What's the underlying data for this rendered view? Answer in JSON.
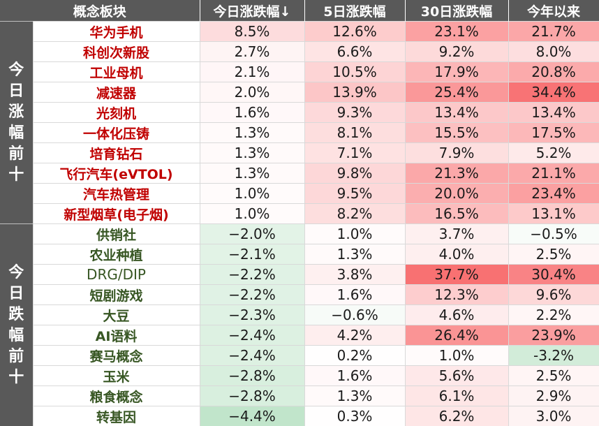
{
  "columns": [
    "概念板块",
    "今日涨跌幅↓",
    "5日涨跌幅",
    "30日涨跌幅",
    "今年以来"
  ],
  "groups": [
    {
      "label": "今日涨幅前十",
      "rows": [
        {
          "name": "华为手机",
          "today": "8.5%",
          "d5": "12.6%",
          "d30": "23.1%",
          "ytd": "21.7%"
        },
        {
          "name": "科创次新股",
          "today": "2.7%",
          "d5": "6.6%",
          "d30": "9.2%",
          "ytd": "8.0%"
        },
        {
          "name": "工业母机",
          "today": "2.1%",
          "d5": "10.5%",
          "d30": "17.9%",
          "ytd": "20.8%"
        },
        {
          "name": "减速器",
          "today": "2.0%",
          "d5": "13.9%",
          "d30": "25.4%",
          "ytd": "34.4%"
        },
        {
          "name": "光刻机",
          "today": "1.6%",
          "d5": "9.3%",
          "d30": "13.4%",
          "ytd": "13.4%"
        },
        {
          "name": "一体化压铸",
          "today": "1.3%",
          "d5": "8.1%",
          "d30": "15.5%",
          "ytd": "17.5%"
        },
        {
          "name": "培育钻石",
          "today": "1.3%",
          "d5": "7.1%",
          "d30": "7.9%",
          "ytd": "5.2%"
        },
        {
          "name": "飞行汽车(eVTOL)",
          "today": "1.3%",
          "d5": "9.8%",
          "d30": "21.3%",
          "ytd": "21.1%"
        },
        {
          "name": "汽车热管理",
          "today": "1.0%",
          "d5": "9.5%",
          "d30": "20.0%",
          "ytd": "23.4%"
        },
        {
          "name": "新型烟草(电子烟)",
          "today": "1.0%",
          "d5": "8.2%",
          "d30": "16.5%",
          "ytd": "13.1%"
        }
      ]
    },
    {
      "label": "今日跌幅前十",
      "rows": [
        {
          "name": "供销社",
          "today": "−2.0%",
          "d5": "1.0%",
          "d30": "3.7%",
          "ytd": "−0.5%"
        },
        {
          "name": "农业种植",
          "today": "−2.1%",
          "d5": "1.3%",
          "d30": "4.0%",
          "ytd": "2.5%"
        },
        {
          "name": "DRG/DIP",
          "today": "−2.2%",
          "d5": "3.8%",
          "d30": "37.7%",
          "ytd": "30.4%"
        },
        {
          "name": "短剧游戏",
          "today": "−2.2%",
          "d5": "1.6%",
          "d30": "12.3%",
          "ytd": "9.6%"
        },
        {
          "name": "大豆",
          "today": "−2.3%",
          "d5": "−0.6%",
          "d30": "4.6%",
          "ytd": "2.2%"
        },
        {
          "name": "AI语料",
          "today": "−2.4%",
          "d5": "4.2%",
          "d30": "26.4%",
          "ytd": "23.9%"
        },
        {
          "name": "赛马概念",
          "today": "−2.4%",
          "d5": "0.2%",
          "d30": "1.0%",
          "ytd": "-3.2%"
        },
        {
          "name": "玉米",
          "today": "−2.8%",
          "d5": "1.6%",
          "d30": "5.6%",
          "ytd": "2.5%"
        },
        {
          "name": "粮食概念",
          "today": "−2.8%",
          "d5": "1.3%",
          "d30": "6.1%",
          "ytd": "2.9%"
        },
        {
          "name": "转基因",
          "today": "−4.4%",
          "d5": "0.3%",
          "d30": "6.2%",
          "ytd": "3.0%"
        }
      ]
    }
  ],
  "colors": {
    "header_bg": "#595959",
    "header_text": "#ffffff",
    "gain_name": "#c00000",
    "loss_name": "#375623",
    "gain_scale_max": "#f8696b",
    "loss_scale_max": "#63be7b"
  }
}
